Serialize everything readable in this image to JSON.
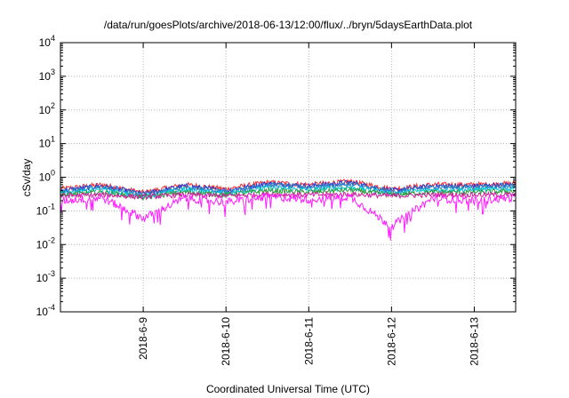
{
  "chart_data": {
    "type": "line",
    "title": "/data/run/goesPlots/archive/2018-06-13/12:00/flux/../bryn/5daysEarthData.plot",
    "xlabel": "Coordinated Universal Time (UTC)",
    "ylabel": "cSv/day",
    "yscale": "log",
    "ylim": [
      0.0001,
      10000
    ],
    "y_ticks": [
      {
        "base": "10",
        "exp": "-4",
        "value": 0.0001
      },
      {
        "base": "10",
        "exp": "-3",
        "value": 0.001
      },
      {
        "base": "10",
        "exp": "-2",
        "value": 0.01
      },
      {
        "base": "10",
        "exp": "-1",
        "value": 0.1
      },
      {
        "base": "10",
        "exp": "0",
        "value": 1
      },
      {
        "base": "10",
        "exp": "1",
        "value": 10
      },
      {
        "base": "10",
        "exp": "2",
        "value": 100
      },
      {
        "base": "10",
        "exp": "3",
        "value": 1000
      },
      {
        "base": "10",
        "exp": "4",
        "value": 10000
      }
    ],
    "xlim": [
      "2018-06-08T00:00",
      "2018-06-13T12:00"
    ],
    "x_ticks": [
      "2018-6-9",
      "2018-6-10",
      "2018-6-11",
      "2018-6-12",
      "2018-6-13"
    ],
    "grid": true,
    "series": [
      {
        "color": "#ff2a2a",
        "x": [
          "2018-06-08T00:00",
          "2018-06-08T12:00",
          "2018-06-09T00:00",
          "2018-06-09T12:00",
          "2018-06-10T00:00",
          "2018-06-10T12:00",
          "2018-06-11T00:00",
          "2018-06-11T12:00",
          "2018-06-12T00:00",
          "2018-06-12T12:00",
          "2018-06-13T00:00",
          "2018-06-13T12:00"
        ],
        "values": [
          0.45,
          0.6,
          0.35,
          0.6,
          0.45,
          0.7,
          0.6,
          0.75,
          0.45,
          0.6,
          0.6,
          0.65
        ]
      },
      {
        "color": "#1f3fd6",
        "x": [
          "2018-06-08T00:00",
          "2018-06-08T12:00",
          "2018-06-09T00:00",
          "2018-06-09T12:00",
          "2018-06-10T00:00",
          "2018-06-10T12:00",
          "2018-06-11T00:00",
          "2018-06-11T12:00",
          "2018-06-12T00:00",
          "2018-06-12T12:00",
          "2018-06-13T00:00",
          "2018-06-13T12:00"
        ],
        "values": [
          0.4,
          0.55,
          0.32,
          0.55,
          0.4,
          0.65,
          0.55,
          0.7,
          0.4,
          0.55,
          0.55,
          0.6
        ]
      },
      {
        "color": "#2f7fbf",
        "x": [
          "2018-06-08T00:00",
          "2018-06-08T12:00",
          "2018-06-09T00:00",
          "2018-06-09T12:00",
          "2018-06-10T00:00",
          "2018-06-10T12:00",
          "2018-06-11T00:00",
          "2018-06-11T12:00",
          "2018-06-12T00:00",
          "2018-06-12T12:00",
          "2018-06-13T00:00",
          "2018-06-13T12:00"
        ],
        "values": [
          0.37,
          0.5,
          0.3,
          0.5,
          0.37,
          0.6,
          0.5,
          0.62,
          0.37,
          0.5,
          0.5,
          0.55
        ]
      },
      {
        "color": "#00c8d8",
        "x": [
          "2018-06-08T00:00",
          "2018-06-08T12:00",
          "2018-06-09T00:00",
          "2018-06-09T12:00",
          "2018-06-10T00:00",
          "2018-06-10T12:00",
          "2018-06-11T00:00",
          "2018-06-11T12:00",
          "2018-06-12T00:00",
          "2018-06-12T12:00",
          "2018-06-13T00:00",
          "2018-06-13T12:00"
        ],
        "values": [
          0.33,
          0.42,
          0.27,
          0.42,
          0.33,
          0.48,
          0.42,
          0.5,
          0.33,
          0.42,
          0.42,
          0.45
        ]
      },
      {
        "color": "#2e9b3a",
        "x": [
          "2018-06-08T00:00",
          "2018-06-08T12:00",
          "2018-06-09T00:00",
          "2018-06-09T12:00",
          "2018-06-10T00:00",
          "2018-06-10T12:00",
          "2018-06-11T00:00",
          "2018-06-11T12:00",
          "2018-06-12T00:00",
          "2018-06-12T12:00",
          "2018-06-13T00:00",
          "2018-06-13T12:00"
        ],
        "values": [
          0.3,
          0.36,
          0.25,
          0.36,
          0.3,
          0.4,
          0.36,
          0.42,
          0.3,
          0.36,
          0.36,
          0.38
        ]
      },
      {
        "color": "#d01ea0",
        "x": [
          "2018-06-08T00:00",
          "2018-06-08T12:00",
          "2018-06-09T00:00",
          "2018-06-09T12:00",
          "2018-06-10T00:00",
          "2018-06-10T12:00",
          "2018-06-11T00:00",
          "2018-06-11T12:00",
          "2018-06-12T00:00",
          "2018-06-12T12:00",
          "2018-06-13T00:00",
          "2018-06-13T12:00"
        ],
        "values": [
          0.28,
          0.3,
          0.26,
          0.3,
          0.28,
          0.31,
          0.3,
          0.31,
          0.28,
          0.3,
          0.3,
          0.3
        ]
      },
      {
        "color": "#ff1eff",
        "x": [
          "2018-06-08T00:00",
          "2018-06-08T12:00",
          "2018-06-09T00:00",
          "2018-06-09T12:00",
          "2018-06-10T00:00",
          "2018-06-10T12:00",
          "2018-06-11T00:00",
          "2018-06-11T12:00",
          "2018-06-12T00:00",
          "2018-06-12T12:00",
          "2018-06-13T00:00",
          "2018-06-13T12:00"
        ],
        "values": [
          0.2,
          0.25,
          0.06,
          0.24,
          0.18,
          0.26,
          0.22,
          0.26,
          0.035,
          0.24,
          0.2,
          0.25
        ]
      }
    ]
  }
}
